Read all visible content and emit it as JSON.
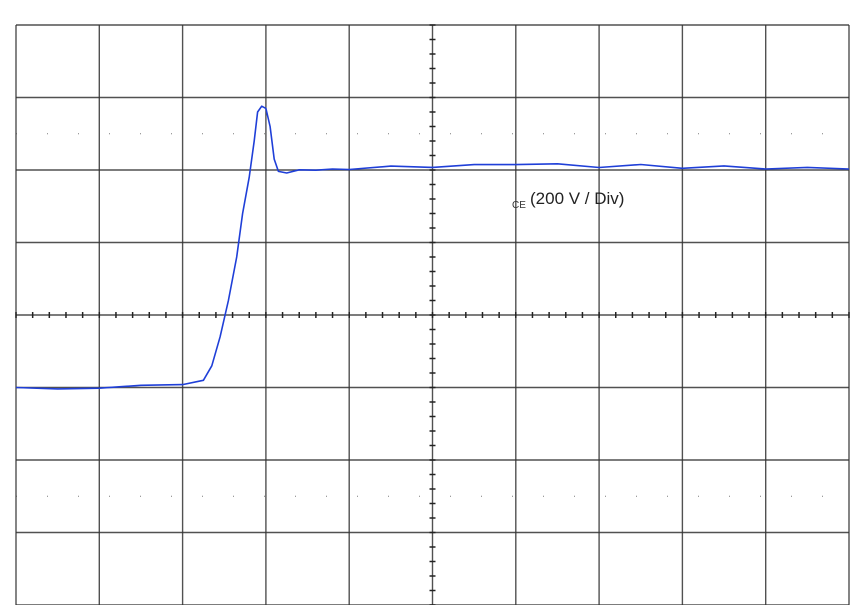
{
  "chart_data": {
    "type": "line",
    "title": "",
    "xlabel": "",
    "ylabel": "",
    "grid": true,
    "divisions": {
      "x": 10,
      "y": 8
    },
    "xlim": [
      0,
      10
    ],
    "ylim": [
      -4,
      4
    ],
    "annotation": {
      "prefix": "CE",
      "text": "(200 V / Div)"
    },
    "series": [
      {
        "color": "#1f3fd8",
        "x": [
          0.0,
          0.5,
          1.0,
          1.5,
          2.0,
          2.25,
          2.35,
          2.45,
          2.55,
          2.65,
          2.72,
          2.8,
          2.86,
          2.9,
          2.95,
          3.0,
          3.05,
          3.1,
          3.15,
          3.25,
          3.4,
          3.6,
          3.8,
          4.0,
          4.5,
          5.0,
          5.5,
          6.0,
          6.5,
          7.0,
          7.5,
          8.0,
          8.5,
          9.0,
          9.5,
          10.0
        ],
        "y": [
          -1.0,
          -1.02,
          -1.01,
          -0.97,
          -0.96,
          -0.9,
          -0.7,
          -0.3,
          0.2,
          0.8,
          1.4,
          1.9,
          2.4,
          2.8,
          2.88,
          2.85,
          2.6,
          2.15,
          1.98,
          1.97,
          1.99,
          2.01,
          2.0,
          2.02,
          2.04,
          2.05,
          2.06,
          2.09,
          2.07,
          2.05,
          2.06,
          2.04,
          2.04,
          2.03,
          2.02,
          2.03
        ]
      }
    ]
  }
}
